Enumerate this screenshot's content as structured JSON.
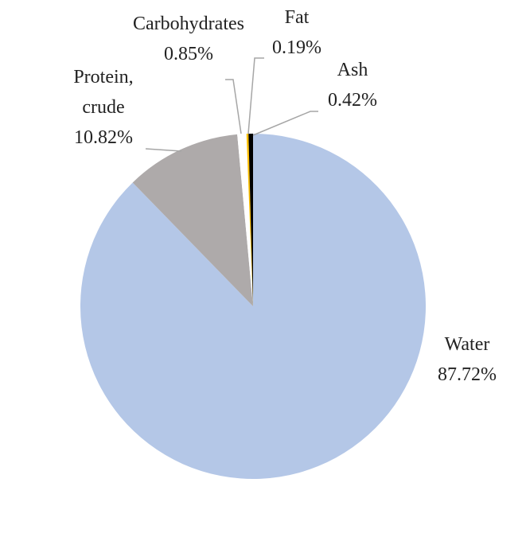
{
  "chart_data": {
    "type": "pie",
    "categories": [
      "Water",
      "Protein, crude",
      "Carbohydrates",
      "Fat",
      "Ash"
    ],
    "values": [
      87.72,
      10.82,
      0.85,
      0.19,
      0.42
    ],
    "value_labels": [
      "87.72%",
      "10.82%",
      "0.85%",
      "0.19%",
      "0.42%"
    ],
    "colors": [
      "#b4c7e7",
      "#aeaaaa",
      "#ffffff",
      "#ffc000",
      "#000000"
    ]
  }
}
